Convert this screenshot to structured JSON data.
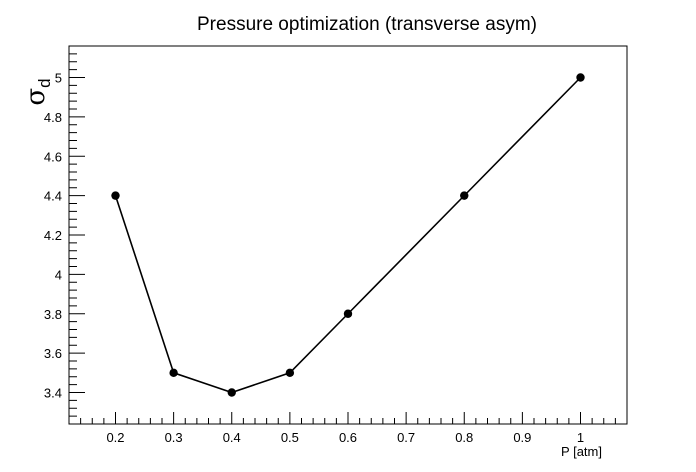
{
  "chart_data": {
    "type": "line",
    "title": "Pressure optimization (transverse asym)",
    "xlabel": "P [atm]",
    "ylabel": "σ",
    "ylabel_subscript": "d",
    "x": [
      0.2,
      0.3,
      0.4,
      0.5,
      0.6,
      0.8,
      1.0
    ],
    "series": [
      {
        "values": [
          4.4,
          3.5,
          3.4,
          3.5,
          3.8,
          4.4,
          5.0
        ]
      }
    ],
    "xlim": [
      0.12,
      1.08
    ],
    "ylim": [
      3.24,
      5.16
    ],
    "xticks": [
      0.2,
      0.3,
      0.4,
      0.5,
      0.6,
      0.7,
      0.8,
      0.9,
      1.0
    ],
    "xtick_labels": [
      "0.2",
      "0.3",
      "0.4",
      "0.5",
      "0.6",
      "0.7",
      "0.8",
      "0.9",
      "1"
    ],
    "yticks": [
      3.4,
      3.6,
      3.8,
      4.0,
      4.2,
      4.4,
      4.6,
      4.8,
      5.0
    ],
    "ytick_labels": [
      "3.4",
      "3.6",
      "3.8",
      "4",
      "4.2",
      "4.4",
      "4.6",
      "4.8",
      "5"
    ],
    "grid": false,
    "line_color": "#000000",
    "marker_color": "#000000"
  }
}
